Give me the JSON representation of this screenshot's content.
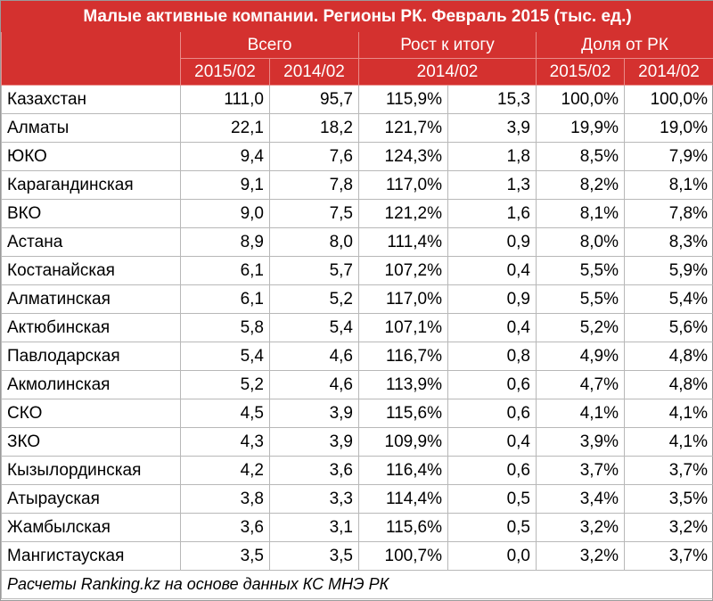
{
  "chart_data": {
    "type": "table",
    "title": "Малые активные компании. Регионы РК. Февраль 2015 (тыс. ед.)",
    "groups": [
      {
        "label": "Всего",
        "subs": [
          "2015/02",
          "2014/02"
        ]
      },
      {
        "label": "Рост к итогу",
        "subs": [
          "2014/02"
        ]
      },
      {
        "label": "Доля от РК",
        "subs": [
          "2015/02",
          "2014/02"
        ]
      }
    ],
    "rows": [
      {
        "region": "Казахстан",
        "total_2015": "111,0",
        "total_2014": "95,7",
        "growth_pct": "115,9%",
        "growth_abs": "15,3",
        "share_2015": "100,0%",
        "share_2014": "100,0%"
      },
      {
        "region": "Алматы",
        "total_2015": "22,1",
        "total_2014": "18,2",
        "growth_pct": "121,7%",
        "growth_abs": "3,9",
        "share_2015": "19,9%",
        "share_2014": "19,0%"
      },
      {
        "region": "ЮКО",
        "total_2015": "9,4",
        "total_2014": "7,6",
        "growth_pct": "124,3%",
        "growth_abs": "1,8",
        "share_2015": "8,5%",
        "share_2014": "7,9%"
      },
      {
        "region": "Карагандинская",
        "total_2015": "9,1",
        "total_2014": "7,8",
        "growth_pct": "117,0%",
        "growth_abs": "1,3",
        "share_2015": "8,2%",
        "share_2014": "8,1%"
      },
      {
        "region": "ВКО",
        "total_2015": "9,0",
        "total_2014": "7,5",
        "growth_pct": "121,2%",
        "growth_abs": "1,6",
        "share_2015": "8,1%",
        "share_2014": "7,8%"
      },
      {
        "region": "Астана",
        "total_2015": "8,9",
        "total_2014": "8,0",
        "growth_pct": "111,4%",
        "growth_abs": "0,9",
        "share_2015": "8,0%",
        "share_2014": "8,3%"
      },
      {
        "region": "Костанайская",
        "total_2015": "6,1",
        "total_2014": "5,7",
        "growth_pct": "107,2%",
        "growth_abs": "0,4",
        "share_2015": "5,5%",
        "share_2014": "5,9%"
      },
      {
        "region": "Алматинская",
        "total_2015": "6,1",
        "total_2014": "5,2",
        "growth_pct": "117,0%",
        "growth_abs": "0,9",
        "share_2015": "5,5%",
        "share_2014": "5,4%"
      },
      {
        "region": "Актюбинская",
        "total_2015": "5,8",
        "total_2014": "5,4",
        "growth_pct": "107,1%",
        "growth_abs": "0,4",
        "share_2015": "5,2%",
        "share_2014": "5,6%"
      },
      {
        "region": "Павлодарская",
        "total_2015": "5,4",
        "total_2014": "4,6",
        "growth_pct": "116,7%",
        "growth_abs": "0,8",
        "share_2015": "4,9%",
        "share_2014": "4,8%"
      },
      {
        "region": "Акмолинская",
        "total_2015": "5,2",
        "total_2014": "4,6",
        "growth_pct": "113,9%",
        "growth_abs": "0,6",
        "share_2015": "4,7%",
        "share_2014": "4,8%"
      },
      {
        "region": "СКО",
        "total_2015": "4,5",
        "total_2014": "3,9",
        "growth_pct": "115,6%",
        "growth_abs": "0,6",
        "share_2015": "4,1%",
        "share_2014": "4,1%"
      },
      {
        "region": "ЗКО",
        "total_2015": "4,3",
        "total_2014": "3,9",
        "growth_pct": "109,9%",
        "growth_abs": "0,4",
        "share_2015": "3,9%",
        "share_2014": "4,1%"
      },
      {
        "region": "Кызылординская",
        "total_2015": "4,2",
        "total_2014": "3,6",
        "growth_pct": "116,4%",
        "growth_abs": "0,6",
        "share_2015": "3,7%",
        "share_2014": "3,7%"
      },
      {
        "region": "Атырауская",
        "total_2015": "3,8",
        "total_2014": "3,3",
        "growth_pct": "114,4%",
        "growth_abs": "0,5",
        "share_2015": "3,4%",
        "share_2014": "3,5%"
      },
      {
        "region": "Жамбылская",
        "total_2015": "3,6",
        "total_2014": "3,1",
        "growth_pct": "115,6%",
        "growth_abs": "0,5",
        "share_2015": "3,2%",
        "share_2014": "3,2%"
      },
      {
        "region": "Мангистауская",
        "total_2015": "3,5",
        "total_2014": "3,5",
        "growth_pct": "100,7%",
        "growth_abs": "0,0",
        "share_2015": "3,2%",
        "share_2014": "3,7%"
      }
    ],
    "footnote": "Расчеты Ranking.kz на основе данных КС МНЭ РК",
    "colors": {
      "header_bg": "#d4312f",
      "header_text": "#ffffff",
      "grid": "#b8b8b8"
    }
  }
}
